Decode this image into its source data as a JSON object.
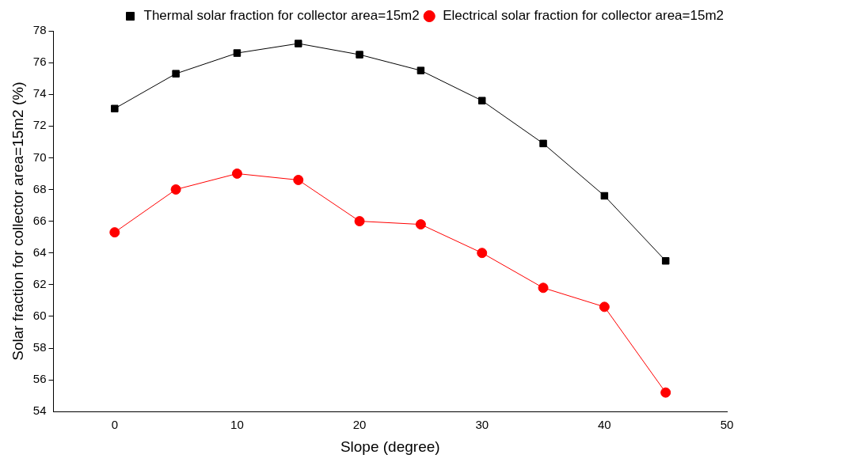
{
  "chart_data": {
    "type": "line",
    "xlabel": "Slope (degree)",
    "ylabel": "Solar fraction for collector area=15m2 (%)",
    "x": [
      0,
      5,
      10,
      15,
      20,
      25,
      30,
      35,
      40,
      45
    ],
    "series": [
      {
        "name": "Thermal solar fraction for collector area=15m2",
        "color": "#000000",
        "marker": "square",
        "values": [
          73.1,
          75.3,
          76.6,
          77.2,
          76.5,
          75.5,
          73.6,
          70.9,
          67.6,
          63.5
        ]
      },
      {
        "name": "Electrical solar fraction for collector area=15m2",
        "color": "#ff0000",
        "marker": "circle",
        "values": [
          65.3,
          68.0,
          69.0,
          68.6,
          66.0,
          65.8,
          64.0,
          61.8,
          60.6,
          55.2
        ]
      }
    ],
    "xlim": [
      -5,
      50
    ],
    "xticks": [
      0,
      10,
      20,
      30,
      40,
      50
    ],
    "ylim": [
      54,
      78
    ],
    "yticks": [
      54,
      56,
      58,
      60,
      62,
      64,
      66,
      68,
      70,
      72,
      74,
      76,
      78
    ],
    "grid": false,
    "legend": "top right",
    "line_style": "solid"
  }
}
